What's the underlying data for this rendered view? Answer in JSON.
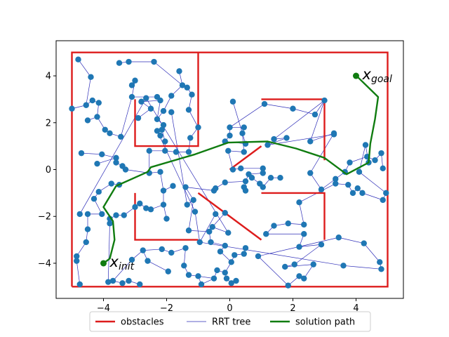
{
  "chart_data": {
    "type": "scatter",
    "title": "",
    "xlabel": "",
    "ylabel": "",
    "xlim": [
      -5.5,
      5.5
    ],
    "ylim": [
      -5.5,
      5.5
    ],
    "xticks": [
      -4,
      -2,
      0,
      2,
      4
    ],
    "yticks": [
      -4,
      -2,
      0,
      2,
      4
    ],
    "xtick_labels": [
      "−4",
      "−2",
      "0",
      "2",
      "4"
    ],
    "ytick_labels": [
      "−4",
      "−2",
      "0",
      "2",
      "4"
    ],
    "grid": false,
    "legend": {
      "placement": "bottom-center, outside plot",
      "entries": [
        {
          "label": "obstacles",
          "color": "#dd1c1c"
        },
        {
          "label": "RRT tree",
          "color": "#2d2db8"
        },
        {
          "label": "solution path",
          "color": "#107c10"
        }
      ]
    },
    "colors": {
      "obstacles": "#dd1c1c",
      "tree": "#2d2db8",
      "path": "#107c10",
      "nodes": "#1f77b4"
    },
    "obstacles": [
      [
        [
          -5,
          -5
        ],
        [
          5,
          -5
        ],
        [
          5,
          5
        ],
        [
          -5,
          5
        ],
        [
          -5,
          -5
        ]
      ],
      [
        [
          -1,
          5
        ],
        [
          -1,
          1
        ],
        [
          -3,
          1
        ],
        [
          -3,
          3
        ]
      ],
      [
        [
          1,
          3
        ],
        [
          3,
          3
        ],
        [
          3,
          0.4
        ]
      ],
      [
        [
          1,
          -1
        ],
        [
          3,
          -1
        ],
        [
          3,
          -3
        ]
      ],
      [
        [
          -3,
          -1
        ],
        [
          -3,
          -3
        ],
        [
          -1,
          -3
        ]
      ],
      [
        [
          0,
          0
        ],
        [
          1,
          1
        ]
      ],
      [
        [
          -1,
          -1
        ],
        [
          1,
          -3
        ]
      ]
    ],
    "solution_path": [
      [
        -4,
        -4
      ],
      [
        -3.8,
        -3.8
      ],
      [
        -3.65,
        -3
      ],
      [
        -3.7,
        -2.2
      ],
      [
        -4,
        -1.6
      ],
      [
        -3.6,
        -0.7
      ],
      [
        -2.6,
        -0.1
      ],
      [
        -2.5,
        0.1
      ],
      [
        -1.1,
        0.65
      ],
      [
        -0.05,
        1.15
      ],
      [
        1.2,
        1.2
      ],
      [
        2.1,
        0.9
      ],
      [
        3,
        0.5
      ],
      [
        3.7,
        -0.2
      ],
      [
        4.4,
        0.3
      ],
      [
        4.45,
        1.1
      ],
      [
        4.6,
        2.15
      ],
      [
        4.7,
        3.1
      ],
      [
        4.05,
        3.95
      ],
      [
        4,
        4
      ]
    ],
    "tree_nodes": [
      [
        -4.8,
        4.7
      ],
      [
        -4.4,
        3.95
      ],
      [
        -4.55,
        2.75
      ],
      [
        -4.35,
        2.95
      ],
      [
        -4.15,
        2.85
      ],
      [
        -5,
        2.6
      ],
      [
        -4.2,
        2.25
      ],
      [
        -4.5,
        2.1
      ],
      [
        -3.95,
        1.7
      ],
      [
        -3.8,
        1.55
      ],
      [
        -4.7,
        0.7
      ],
      [
        -4.05,
        0.65
      ],
      [
        -3.6,
        0.5
      ],
      [
        -4.2,
        0.25
      ],
      [
        -3.6,
        0.3
      ],
      [
        -3.4,
        0.15
      ],
      [
        -3.3,
        0
      ],
      [
        -3.45,
        1.4
      ],
      [
        -3.1,
        3.1
      ],
      [
        -3,
        3.8
      ],
      [
        -3.1,
        3.6
      ],
      [
        -3.5,
        4.55
      ],
      [
        -3.2,
        4.6
      ],
      [
        -2.4,
        4.6
      ],
      [
        -2.3,
        3.1
      ],
      [
        -2.2,
        2.95
      ],
      [
        -2.8,
        2.9
      ],
      [
        -2.5,
        2.6
      ],
      [
        -2.9,
        2.2
      ],
      [
        -2.3,
        2.15
      ],
      [
        -2.1,
        2.5
      ],
      [
        -1.85,
        3.15
      ],
      [
        -1.5,
        3.6
      ],
      [
        -1.6,
        4.2
      ],
      [
        -1.35,
        3.5
      ],
      [
        -1.2,
        3.2
      ],
      [
        -1.3,
        2.55
      ],
      [
        -2.1,
        1.9
      ],
      [
        -2.15,
        1.7
      ],
      [
        -2.05,
        1.2
      ],
      [
        -2.05,
        0.8
      ],
      [
        -1.7,
        0.75
      ],
      [
        -1.3,
        0.75
      ],
      [
        -1,
        1.8
      ],
      [
        -1.25,
        1.35
      ],
      [
        -2.55,
        0.8
      ],
      [
        -2.55,
        -0.15
      ],
      [
        -2.2,
        -0.1
      ],
      [
        -2.1,
        -0.9
      ],
      [
        -1.8,
        -0.7
      ],
      [
        -2.1,
        -1.5
      ],
      [
        -2,
        -2.1
      ],
      [
        -2.5,
        -1.7
      ],
      [
        -2.65,
        -1.65
      ],
      [
        -2.85,
        -1.45
      ],
      [
        -3,
        -1.6
      ],
      [
        -3.35,
        -1.95
      ],
      [
        -3.6,
        -1.95
      ],
      [
        -3.8,
        -2.1
      ],
      [
        -3.8,
        -2.3
      ],
      [
        -3.5,
        -0.65
      ],
      [
        -3.75,
        -0.6
      ],
      [
        -4.15,
        -0.95
      ],
      [
        -4.3,
        -1.25
      ],
      [
        -4.05,
        -1.9
      ],
      [
        -4.5,
        -1.9
      ],
      [
        -4.5,
        -2.55
      ],
      [
        -4.55,
        -3.1
      ],
      [
        -4.85,
        -3.7
      ],
      [
        -4.85,
        -3.9
      ],
      [
        -4.75,
        -4.9
      ],
      [
        -3.85,
        -4.8
      ],
      [
        -3.7,
        -4.75
      ],
      [
        -3.4,
        -4.85
      ],
      [
        -3.2,
        -4.75
      ],
      [
        -2.85,
        -4.9
      ],
      [
        -3.1,
        -3.85
      ],
      [
        -2.75,
        -3.45
      ],
      [
        -2.15,
        -3.4
      ],
      [
        -1.85,
        -3.55
      ],
      [
        -2.6,
        -3.9
      ],
      [
        -1.95,
        -4.35
      ],
      [
        -1.4,
        -3.35
      ],
      [
        -1.45,
        -4.1
      ],
      [
        -1.3,
        -4.5
      ],
      [
        -1,
        -4.55
      ],
      [
        -0.9,
        -4.9
      ],
      [
        -0.5,
        -4.65
      ],
      [
        -0.4,
        -4.3
      ],
      [
        -0.15,
        -4.4
      ],
      [
        -0.1,
        -4.65
      ],
      [
        0.05,
        -4.85
      ],
      [
        0.2,
        -4.75
      ],
      [
        0.05,
        -3.95
      ],
      [
        -0.3,
        -3.5
      ],
      [
        -0.15,
        -3.25
      ],
      [
        0.15,
        -3.65
      ],
      [
        0.45,
        -3.6
      ],
      [
        0.5,
        -3.35
      ],
      [
        -0.6,
        -3.1
      ],
      [
        -0.65,
        -2.65
      ],
      [
        -0.55,
        -2.45
      ],
      [
        -0.15,
        -1.85
      ],
      [
        -0.05,
        -2.7
      ],
      [
        -1.3,
        -2.6
      ],
      [
        -1.15,
        -1.3
      ],
      [
        -1.35,
        -1.5
      ],
      [
        -1.4,
        -0.75
      ],
      [
        -0.5,
        -0.9
      ],
      [
        -0.45,
        -0.8
      ],
      [
        -0.15,
        -0.55
      ],
      [
        0.5,
        -0.5
      ],
      [
        0.5,
        -0.9
      ],
      [
        0.45,
        -0.75
      ],
      [
        0.6,
        -0.2
      ],
      [
        0.7,
        -0.35
      ],
      [
        0.95,
        -0.6
      ],
      [
        1.05,
        -0.75
      ],
      [
        1.3,
        -0.35
      ],
      [
        1.6,
        -0.35
      ],
      [
        1.05,
        -0.15
      ],
      [
        1.05,
        0.05
      ],
      [
        0.35,
        0.05
      ],
      [
        0.1,
        0
      ],
      [
        -0.05,
        0.8
      ],
      [
        0.45,
        0.75
      ],
      [
        0.4,
        1.55
      ],
      [
        0.45,
        1.8
      ],
      [
        0,
        1.8
      ],
      [
        0,
        1.45
      ],
      [
        -0.15,
        1.2
      ],
      [
        0.5,
        1.1
      ],
      [
        0.1,
        2.9
      ],
      [
        1.1,
        2.8
      ],
      [
        2,
        2.6
      ],
      [
        2.7,
        2.35
      ],
      [
        3,
        2.95
      ],
      [
        2.55,
        1.2
      ],
      [
        1.4,
        1.3
      ],
      [
        1.8,
        1.35
      ],
      [
        1.2,
        1.05
      ],
      [
        3.3,
        1.5
      ],
      [
        3.3,
        1.55
      ],
      [
        2.55,
        -0.15
      ],
      [
        2.9,
        -0.85
      ],
      [
        3.35,
        -0.4
      ],
      [
        3.65,
        -0.1
      ],
      [
        3.8,
        0.3
      ],
      [
        4.35,
        0.55
      ],
      [
        4.6,
        0.4
      ],
      [
        4.8,
        0.7
      ],
      [
        4.85,
        0.05
      ],
      [
        4.4,
        0.3
      ],
      [
        4.3,
        1.05
      ],
      [
        4.1,
        -0.1
      ],
      [
        4.95,
        -1
      ],
      [
        4.85,
        -1.3
      ],
      [
        4.2,
        -1
      ],
      [
        4.05,
        -0.8
      ],
      [
        3.9,
        -1
      ],
      [
        3.75,
        -0.65
      ],
      [
        3.35,
        -0.6
      ],
      [
        2.2,
        -1.4
      ],
      [
        2.35,
        -2.35
      ],
      [
        1.85,
        -2.3
      ],
      [
        1.4,
        -2.4
      ],
      [
        1.15,
        -2.75
      ],
      [
        2.35,
        -2.75
      ],
      [
        2.2,
        -3.3
      ],
      [
        2.9,
        -3.2
      ],
      [
        2.05,
        -4.05
      ],
      [
        1.75,
        -4.15
      ],
      [
        2.65,
        -4.05
      ],
      [
        2.35,
        -4.65
      ],
      [
        2.2,
        -4.55
      ],
      [
        1.85,
        -4.95
      ],
      [
        0.9,
        -3.7
      ],
      [
        3.45,
        -2.9
      ],
      [
        4.25,
        -3.15
      ],
      [
        4.75,
        -3.95
      ],
      [
        4.8,
        -4.25
      ],
      [
        3.6,
        -4.1
      ],
      [
        -0.95,
        -3.1
      ],
      [
        -0.45,
        -1.9
      ],
      [
        -1.1,
        -1.8
      ],
      [
        -2.3,
        1.65
      ],
      [
        -2.2,
        1.45
      ],
      [
        -1.85,
        2.45
      ],
      [
        -4.75,
        -1.9
      ],
      [
        -2.65,
        3.05
      ]
    ],
    "tree_edges": [
      [
        0,
        1
      ],
      [
        1,
        2
      ],
      [
        2,
        3
      ],
      [
        3,
        4
      ],
      [
        2,
        5
      ],
      [
        4,
        6
      ],
      [
        6,
        7
      ],
      [
        6,
        8
      ],
      [
        8,
        9
      ],
      [
        9,
        17
      ],
      [
        10,
        11
      ],
      [
        11,
        12
      ],
      [
        12,
        13
      ],
      [
        12,
        14
      ],
      [
        14,
        15
      ],
      [
        15,
        16
      ],
      [
        16,
        46
      ],
      [
        17,
        18
      ],
      [
        18,
        19
      ],
      [
        19,
        20
      ],
      [
        18,
        24
      ],
      [
        21,
        22
      ],
      [
        22,
        23
      ],
      [
        23,
        32
      ],
      [
        24,
        25
      ],
      [
        25,
        26
      ],
      [
        26,
        27
      ],
      [
        27,
        28
      ],
      [
        25,
        29
      ],
      [
        29,
        30
      ],
      [
        30,
        31
      ],
      [
        31,
        32
      ],
      [
        32,
        33
      ],
      [
        32,
        34
      ],
      [
        34,
        35
      ],
      [
        35,
        36
      ],
      [
        36,
        43
      ],
      [
        29,
        37
      ],
      [
        37,
        38
      ],
      [
        38,
        39
      ],
      [
        39,
        40
      ],
      [
        40,
        41
      ],
      [
        41,
        42
      ],
      [
        42,
        44
      ],
      [
        44,
        43
      ],
      [
        40,
        45
      ],
      [
        45,
        46
      ],
      [
        46,
        47
      ],
      [
        47,
        48
      ],
      [
        48,
        49
      ],
      [
        48,
        50
      ],
      [
        50,
        51
      ],
      [
        50,
        52
      ],
      [
        52,
        53
      ],
      [
        53,
        54
      ],
      [
        54,
        55
      ],
      [
        55,
        56
      ],
      [
        56,
        57
      ],
      [
        57,
        58
      ],
      [
        58,
        59
      ],
      [
        60,
        61
      ],
      [
        61,
        62
      ],
      [
        62,
        63
      ],
      [
        63,
        64
      ],
      [
        64,
        65
      ],
      [
        65,
        66
      ],
      [
        66,
        67
      ],
      [
        67,
        68
      ],
      [
        68,
        69
      ],
      [
        69,
        70
      ],
      [
        59,
        71
      ],
      [
        71,
        72
      ],
      [
        72,
        73
      ],
      [
        73,
        74
      ],
      [
        74,
        75
      ],
      [
        72,
        76
      ],
      [
        76,
        77
      ],
      [
        77,
        78
      ],
      [
        78,
        79
      ],
      [
        77,
        80
      ],
      [
        80,
        81
      ],
      [
        79,
        82
      ],
      [
        82,
        83
      ],
      [
        83,
        84
      ],
      [
        84,
        85
      ],
      [
        85,
        86
      ],
      [
        85,
        87
      ],
      [
        87,
        88
      ],
      [
        88,
        89
      ],
      [
        89,
        90
      ],
      [
        90,
        91
      ],
      [
        91,
        92
      ],
      [
        89,
        93
      ],
      [
        93,
        94
      ],
      [
        94,
        95
      ],
      [
        93,
        96
      ],
      [
        96,
        97
      ],
      [
        97,
        98
      ],
      [
        95,
        99
      ],
      [
        99,
        100
      ],
      [
        100,
        101
      ],
      [
        101,
        102
      ],
      [
        101,
        103
      ],
      [
        100,
        104
      ],
      [
        104,
        105
      ],
      [
        105,
        106
      ],
      [
        105,
        107
      ],
      [
        107,
        108
      ],
      [
        108,
        109
      ],
      [
        109,
        110
      ],
      [
        110,
        111
      ],
      [
        111,
        112
      ],
      [
        112,
        113
      ],
      [
        111,
        114
      ],
      [
        114,
        115
      ],
      [
        115,
        116
      ],
      [
        116,
        117
      ],
      [
        117,
        118
      ],
      [
        118,
        119
      ],
      [
        114,
        120
      ],
      [
        120,
        121
      ],
      [
        121,
        122
      ],
      [
        122,
        123
      ],
      [
        123,
        124
      ],
      [
        124,
        125
      ],
      [
        125,
        126
      ],
      [
        126,
        127
      ],
      [
        127,
        128
      ],
      [
        128,
        129
      ],
      [
        129,
        130
      ],
      [
        130,
        131
      ],
      [
        131,
        132
      ],
      [
        128,
        133
      ],
      [
        133,
        134
      ],
      [
        134,
        135
      ],
      [
        135,
        136
      ],
      [
        136,
        137
      ],
      [
        136,
        138
      ],
      [
        138,
        139
      ],
      [
        139,
        140
      ],
      [
        140,
        141
      ],
      [
        137,
        142
      ],
      [
        142,
        143
      ],
      [
        143,
        144
      ],
      [
        144,
        145
      ],
      [
        145,
        146
      ],
      [
        146,
        147
      ],
      [
        147,
        148
      ],
      [
        148,
        149
      ],
      [
        149,
        150
      ],
      [
        150,
        151
      ],
      [
        148,
        152
      ],
      [
        152,
        153
      ],
      [
        153,
        154
      ],
      [
        154,
        155
      ],
      [
        155,
        156
      ],
      [
        156,
        157
      ],
      [
        157,
        158
      ],
      [
        158,
        159
      ],
      [
        159,
        160
      ],
      [
        160,
        161
      ],
      [
        161,
        162
      ],
      [
        162,
        163
      ],
      [
        163,
        164
      ],
      [
        164,
        165
      ],
      [
        165,
        166
      ],
      [
        166,
        167
      ],
      [
        167,
        168
      ],
      [
        168,
        169
      ],
      [
        169,
        170
      ],
      [
        170,
        171
      ],
      [
        171,
        172
      ],
      [
        172,
        173
      ],
      [
        173,
        174
      ],
      [
        174,
        175
      ],
      [
        175,
        176
      ],
      [
        176,
        177
      ],
      [
        177,
        178
      ],
      [
        178,
        179
      ],
      [
        179,
        180
      ],
      [
        180,
        181
      ],
      [
        181,
        182
      ],
      [
        182,
        183
      ],
      [
        182,
        184
      ],
      [
        184,
        185
      ],
      [
        185,
        186
      ],
      [
        86,
        87
      ],
      [
        187,
        106
      ],
      [
        188,
        189
      ],
      [
        189,
        103
      ],
      [
        190,
        191
      ],
      [
        191,
        192
      ],
      [
        192,
        30
      ],
      [
        193,
        65
      ],
      [
        194,
        26
      ]
    ],
    "annotations": [
      {
        "text": "x",
        "sub": "init",
        "at": [
          -4,
          -4
        ],
        "color": "#107c10"
      },
      {
        "text": "x",
        "sub": "goal",
        "at": [
          4,
          4
        ],
        "color": "#107c10"
      }
    ]
  }
}
